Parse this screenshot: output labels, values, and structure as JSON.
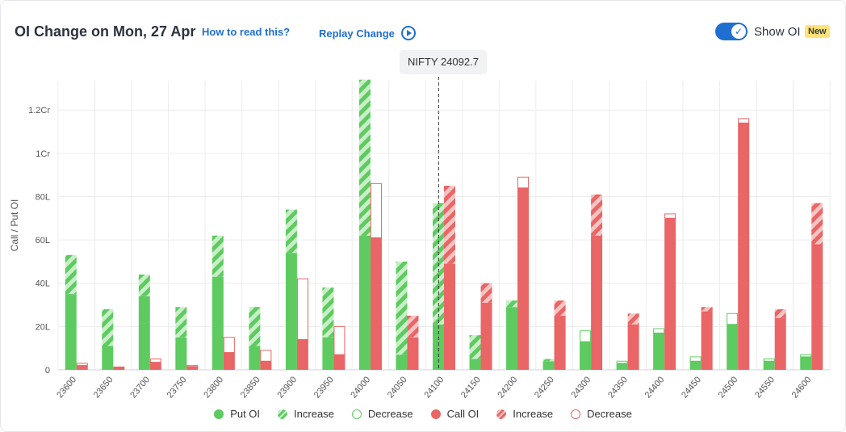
{
  "header": {
    "title": "OI Change on Mon, 27 Apr",
    "how_to_read": "How to read this?",
    "replay": "Replay Change",
    "toggle_label": "Show OI",
    "badge": "New",
    "toggle_on": true
  },
  "spot_label": "NIFTY 24092.7",
  "legend": {
    "put_oi": "Put OI",
    "put_increase": "Increase",
    "put_decrease": "Decrease",
    "call_oi": "Call OI",
    "call_increase": "Increase",
    "call_decrease": "Decrease"
  },
  "colors": {
    "put": "#5ecb60",
    "put_light": "#c8efc8",
    "call": "#e96566",
    "call_light": "#f7c4c4",
    "grid": "#ececec",
    "spot_line": "#333333"
  },
  "chart_data": {
    "type": "bar",
    "ylabel": "Call / Put OI",
    "y_ticks": [
      "0",
      "20L",
      "40L",
      "60L",
      "80L",
      "1Cr",
      "1.2Cr"
    ],
    "y_unit": "lakh",
    "ylim": [
      0,
      120
    ],
    "spot": 24092.7,
    "categories": [
      "23600",
      "23650",
      "23700",
      "23750",
      "23800",
      "23850",
      "23900",
      "23950",
      "24000",
      "24050",
      "24100",
      "24150",
      "24200",
      "24250",
      "24300",
      "24350",
      "24400",
      "24450",
      "24500",
      "24550",
      "24600"
    ],
    "series": [
      {
        "name": "Put OI",
        "values": [
          35,
          11,
          34,
          15,
          43,
          11,
          54,
          15,
          62,
          7,
          21,
          5,
          29,
          4,
          13,
          3,
          17,
          4,
          21,
          4,
          6
        ],
        "changes": [
          18,
          17,
          10,
          14,
          19,
          18,
          20,
          23,
          72,
          43,
          56,
          11,
          3,
          1,
          -5,
          -1,
          -2,
          -2,
          -5,
          -1,
          -1
        ]
      },
      {
        "name": "Call OI",
        "values": [
          2,
          1,
          3.5,
          1.5,
          8,
          4,
          14,
          7,
          61,
          15,
          49,
          31,
          84,
          25,
          62,
          21,
          70,
          27,
          114,
          24,
          58
        ],
        "changes": [
          -1,
          -0.3,
          -1.5,
          -0.5,
          -7,
          -5,
          -28,
          -13,
          -25,
          10,
          36,
          9,
          -5,
          7,
          19,
          5,
          -2,
          2,
          -2,
          4,
          19
        ]
      }
    ]
  }
}
